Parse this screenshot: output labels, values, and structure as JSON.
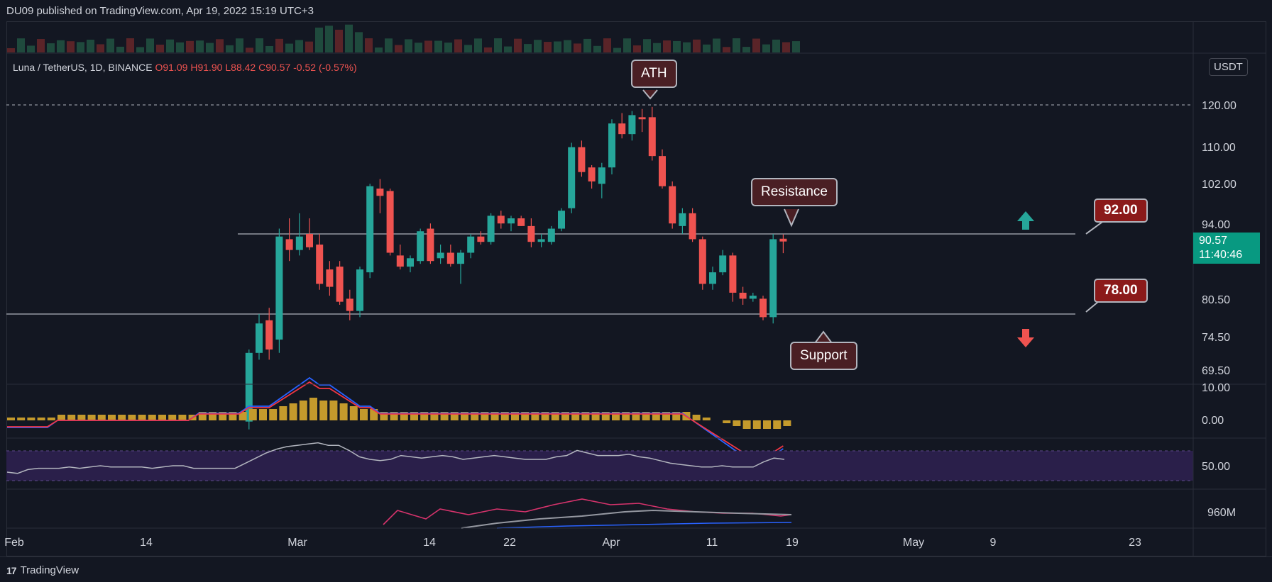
{
  "header": {
    "publisher": "DU09 published on TradingView.com, Apr 19, 2022 15:19 UTC+3"
  },
  "footer": {
    "brand": "TradingView"
  },
  "legend": {
    "symbol": "Luna / TetherUS, 1D, BINANCE",
    "open": "O91.09",
    "high": "H91.90",
    "low": "L88.42",
    "close": "C90.57",
    "change": "-0.52 (-0.57%)"
  },
  "currency": "USDT",
  "last_price": {
    "price": "90.57",
    "countdown": "11:40:46"
  },
  "annotations": {
    "ath": "ATH",
    "resistance": "Resistance",
    "support": "Support",
    "level_high": "92.00",
    "level_low": "78.00"
  },
  "colors": {
    "up": "#26a69a",
    "down": "#ef5350",
    "background": "#131722",
    "macd_line": "#2962ff",
    "signal_line": "#f23645",
    "histogram": "#c49a2c",
    "rsi": "#b2b5be"
  },
  "chart_data": {
    "type": "candlestick",
    "x_ticks": [
      "Feb",
      "14",
      "Mar",
      "14",
      "22",
      "Apr",
      "11",
      "19",
      "May",
      "9",
      "23"
    ],
    "y_ticks": [
      "120.00",
      "110.00",
      "102.00",
      "94.00",
      "80.50",
      "74.50",
      "69.50"
    ],
    "macd_ticks": [
      "10.00",
      "0.00"
    ],
    "rsi_ticks": [
      "50.00"
    ],
    "volume_ticks": [
      "960M"
    ],
    "scale": "log",
    "ath_level": 120.0,
    "resistance_level": 92.0,
    "support_level": 78.0,
    "candles": [
      {
        "date": "2022-02-24",
        "o": 62.5,
        "h": 72.5,
        "l": 61.5,
        "c": 72.0
      },
      {
        "date": "2022-02-25",
        "o": 72.0,
        "h": 78.0,
        "l": 71.0,
        "c": 76.5
      },
      {
        "date": "2022-02-26",
        "o": 77.0,
        "h": 79.0,
        "l": 71.0,
        "c": 72.5
      },
      {
        "date": "2022-02-27",
        "o": 74.0,
        "h": 93.0,
        "l": 72.0,
        "c": 91.5
      },
      {
        "date": "2022-02-28",
        "o": 91.0,
        "h": 95.0,
        "l": 87.0,
        "c": 89.0
      },
      {
        "date": "2022-03-01",
        "o": 89.0,
        "h": 96.0,
        "l": 88.0,
        "c": 91.5
      },
      {
        "date": "2022-03-02",
        "o": 92.0,
        "h": 95.0,
        "l": 89.0,
        "c": 89.5
      },
      {
        "date": "2022-03-03",
        "o": 90.0,
        "h": 92.0,
        "l": 82.0,
        "c": 83.0
      },
      {
        "date": "2022-03-04",
        "o": 85.5,
        "h": 87.0,
        "l": 81.0,
        "c": 82.5
      },
      {
        "date": "2022-03-05",
        "o": 86.0,
        "h": 87.0,
        "l": 79.5,
        "c": 80.0
      },
      {
        "date": "2022-03-06",
        "o": 80.5,
        "h": 82.0,
        "l": 77.0,
        "c": 78.5
      },
      {
        "date": "2022-03-07",
        "o": 78.5,
        "h": 86.0,
        "l": 77.5,
        "c": 85.5
      },
      {
        "date": "2022-03-08",
        "o": 85.0,
        "h": 102.0,
        "l": 84.0,
        "c": 101.5
      },
      {
        "date": "2022-03-09",
        "o": 101.0,
        "h": 103.0,
        "l": 96.0,
        "c": 99.5
      },
      {
        "date": "2022-03-10",
        "o": 100.5,
        "h": 101.0,
        "l": 88.0,
        "c": 88.5
      },
      {
        "date": "2022-03-11",
        "o": 88.0,
        "h": 90.0,
        "l": 85.5,
        "c": 86.0
      },
      {
        "date": "2022-03-12",
        "o": 86.0,
        "h": 88.0,
        "l": 85.0,
        "c": 87.5
      },
      {
        "date": "2022-03-13",
        "o": 87.0,
        "h": 93.0,
        "l": 86.5,
        "c": 92.5
      },
      {
        "date": "2022-03-14",
        "o": 93.0,
        "h": 94.0,
        "l": 86.5,
        "c": 87.0
      },
      {
        "date": "2022-03-15",
        "o": 87.5,
        "h": 90.0,
        "l": 86.5,
        "c": 88.5
      },
      {
        "date": "2022-03-16",
        "o": 88.5,
        "h": 90.0,
        "l": 86.0,
        "c": 86.5
      },
      {
        "date": "2022-03-17",
        "o": 86.5,
        "h": 89.0,
        "l": 83.0,
        "c": 88.5
      },
      {
        "date": "2022-03-18",
        "o": 88.5,
        "h": 92.0,
        "l": 87.5,
        "c": 91.5
      },
      {
        "date": "2022-03-19",
        "o": 91.5,
        "h": 92.5,
        "l": 90.0,
        "c": 90.5
      },
      {
        "date": "2022-03-20",
        "o": 90.5,
        "h": 96.0,
        "l": 90.0,
        "c": 95.5
      },
      {
        "date": "2022-03-21",
        "o": 95.5,
        "h": 96.5,
        "l": 93.0,
        "c": 94.0
      },
      {
        "date": "2022-03-22",
        "o": 94.0,
        "h": 95.5,
        "l": 92.5,
        "c": 95.0
      },
      {
        "date": "2022-03-23",
        "o": 95.0,
        "h": 95.5,
        "l": 93.5,
        "c": 93.5
      },
      {
        "date": "2022-03-24",
        "o": 93.5,
        "h": 95.0,
        "l": 89.5,
        "c": 90.5
      },
      {
        "date": "2022-03-25",
        "o": 90.5,
        "h": 92.0,
        "l": 89.5,
        "c": 91.0
      },
      {
        "date": "2022-03-26",
        "o": 90.5,
        "h": 93.5,
        "l": 90.0,
        "c": 93.0
      },
      {
        "date": "2022-03-27",
        "o": 93.0,
        "h": 97.0,
        "l": 92.5,
        "c": 96.5
      },
      {
        "date": "2022-03-28",
        "o": 97.0,
        "h": 111.0,
        "l": 96.0,
        "c": 110.0
      },
      {
        "date": "2022-03-29",
        "o": 110.0,
        "h": 111.5,
        "l": 103.5,
        "c": 104.5
      },
      {
        "date": "2022-03-30",
        "o": 105.5,
        "h": 106.0,
        "l": 101.0,
        "c": 102.5
      },
      {
        "date": "2022-03-31",
        "o": 102.0,
        "h": 106.5,
        "l": 99.0,
        "c": 105.5
      },
      {
        "date": "2022-04-01",
        "o": 105.5,
        "h": 116.5,
        "l": 104.0,
        "c": 115.5
      },
      {
        "date": "2022-04-02",
        "o": 115.5,
        "h": 118.0,
        "l": 112.0,
        "c": 113.0
      },
      {
        "date": "2022-04-03",
        "o": 113.0,
        "h": 118.5,
        "l": 111.5,
        "c": 117.5
      },
      {
        "date": "2022-04-04",
        "o": 117.0,
        "h": 119.0,
        "l": 113.5,
        "c": 116.5
      },
      {
        "date": "2022-04-05",
        "o": 117.0,
        "h": 119.5,
        "l": 107.0,
        "c": 108.0
      },
      {
        "date": "2022-04-06",
        "o": 108.0,
        "h": 109.5,
        "l": 101.0,
        "c": 101.5
      },
      {
        "date": "2022-04-07",
        "o": 101.5,
        "h": 102.5,
        "l": 93.0,
        "c": 94.0
      },
      {
        "date": "2022-04-08",
        "o": 93.5,
        "h": 97.0,
        "l": 92.0,
        "c": 96.0
      },
      {
        "date": "2022-04-09",
        "o": 96.0,
        "h": 97.0,
        "l": 90.5,
        "c": 91.0
      },
      {
        "date": "2022-04-10",
        "o": 91.0,
        "h": 91.5,
        "l": 82.0,
        "c": 83.0
      },
      {
        "date": "2022-04-11",
        "o": 83.0,
        "h": 86.0,
        "l": 82.0,
        "c": 85.0
      },
      {
        "date": "2022-04-12",
        "o": 85.0,
        "h": 89.0,
        "l": 84.5,
        "c": 88.0
      },
      {
        "date": "2022-04-13",
        "o": 88.0,
        "h": 88.5,
        "l": 80.0,
        "c": 81.5
      },
      {
        "date": "2022-04-14",
        "o": 81.5,
        "h": 82.5,
        "l": 79.5,
        "c": 80.5
      },
      {
        "date": "2022-04-15",
        "o": 80.5,
        "h": 81.5,
        "l": 80.0,
        "c": 81.0
      },
      {
        "date": "2022-04-16",
        "o": 80.5,
        "h": 81.0,
        "l": 77.0,
        "c": 77.5
      },
      {
        "date": "2022-04-17",
        "o": 77.5,
        "h": 92.0,
        "l": 76.5,
        "c": 91.0
      },
      {
        "date": "2022-04-18",
        "o": 91.09,
        "h": 91.9,
        "l": 88.42,
        "c": 90.57
      }
    ],
    "macd": [
      1,
      1,
      1,
      1,
      1,
      2,
      2,
      2,
      2,
      2,
      2,
      2,
      2,
      2,
      2,
      2,
      2,
      2,
      2,
      3,
      3,
      3,
      3,
      3,
      4,
      4,
      4,
      5,
      6,
      7,
      8,
      7,
      7,
      6,
      5,
      4,
      4,
      3,
      3,
      3,
      3,
      3,
      3,
      3,
      3,
      3,
      3,
      3,
      3,
      3,
      3,
      3,
      3,
      3,
      3,
      3,
      3,
      3,
      3,
      3,
      3,
      3,
      3,
      3,
      3,
      3,
      3,
      3,
      2,
      1,
      0,
      -1,
      -2,
      -3,
      -3,
      -3,
      -3,
      -2
    ],
    "rsi": [
      45,
      44,
      47,
      48,
      48,
      48,
      49,
      48,
      49,
      50,
      49,
      49,
      49,
      49,
      48,
      49,
      50,
      50,
      48,
      48,
      48,
      48,
      48,
      52,
      56,
      60,
      63,
      65,
      66,
      67,
      68,
      66,
      66,
      62,
      57,
      55,
      54,
      55,
      58,
      57,
      56,
      57,
      58,
      57,
      55,
      56,
      57,
      58,
      57,
      56,
      55,
      55,
      55,
      57,
      58,
      62,
      60,
      58,
      58,
      58,
      59,
      57,
      56,
      54,
      52,
      51,
      50,
      49,
      49,
      50,
      49,
      49,
      49,
      53,
      56,
      55
    ]
  }
}
